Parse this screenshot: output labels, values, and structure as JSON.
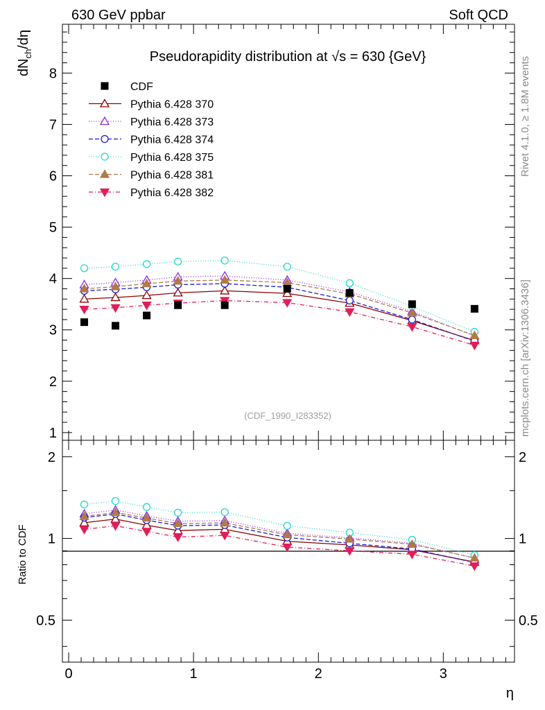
{
  "header": {
    "left": "630 GeV ppbar",
    "right": "Soft QCD"
  },
  "side_labels": {
    "rivet": "Rivet 4.1.0, ≥ 1.8M events",
    "mcplots": "mcplots.cern.ch [arXiv:1306.3436]"
  },
  "chart_data": {
    "type": "scatter",
    "title": "Pseudorapidity distribution at √s = 630 {GeV}",
    "watermark": "(CDF_1990_I283352)",
    "xlabel": "η",
    "ylabel": "dN_ch/dη",
    "ratio_ylabel": "Ratio to CDF",
    "xlim": [
      -0.05,
      3.57
    ],
    "ylim": [
      0.85,
      8.95
    ],
    "ratio_ylim": [
      0.35,
      2.3
    ],
    "x_ticks": [
      "0",
      "1",
      "2",
      "3"
    ],
    "y_ticks": [
      "1",
      "2",
      "3",
      "4",
      "5",
      "6",
      "7",
      "8"
    ],
    "ratio_ticks": [
      "0.5",
      "1",
      "2"
    ],
    "x": [
      0.125,
      0.375,
      0.625,
      0.875,
      1.25,
      1.75,
      2.25,
      2.75,
      3.25
    ],
    "data": {
      "name": "CDF",
      "marker": "square",
      "values": [
        3.15,
        3.08,
        3.28,
        3.48,
        3.48,
        3.8,
        3.72,
        3.5,
        3.41
      ]
    },
    "series": [
      {
        "name": "Pythia 6.428 370",
        "color": "#8b0000",
        "marker": "tri-open",
        "dash": "",
        "values": [
          3.6,
          3.63,
          3.67,
          3.72,
          3.76,
          3.71,
          3.52,
          3.18,
          2.79
        ]
      },
      {
        "name": "Pythia 6.428 373",
        "color": "#8a2be2",
        "marker": "tri-open",
        "dash": "1 2.5",
        "values": [
          3.88,
          3.92,
          3.97,
          4.03,
          4.05,
          3.97,
          3.74,
          3.36,
          2.88
        ]
      },
      {
        "name": "Pythia 6.428 374",
        "color": "#1a1acd",
        "marker": "circle-open",
        "dash": "6 3",
        "values": [
          3.76,
          3.79,
          3.83,
          3.88,
          3.9,
          3.83,
          3.57,
          3.2,
          2.78
        ]
      },
      {
        "name": "Pythia 6.428 375",
        "color": "#20d8cc",
        "marker": "circle-open",
        "dash": "1 2.5",
        "values": [
          4.2,
          4.23,
          4.28,
          4.33,
          4.35,
          4.23,
          3.91,
          3.46,
          2.96
        ]
      },
      {
        "name": "Pythia 6.428 381",
        "color": "#b07a4a",
        "marker": "tri-filled",
        "dash": "6 3",
        "values": [
          3.8,
          3.84,
          3.9,
          3.95,
          3.97,
          3.92,
          3.7,
          3.33,
          2.89
        ]
      },
      {
        "name": "Pythia 6.428 382",
        "color": "#e01e5a",
        "marker": "tri-down-filled",
        "dash": "6 3 1 3",
        "values": [
          3.4,
          3.43,
          3.48,
          3.52,
          3.57,
          3.53,
          3.35,
          3.06,
          2.7
        ]
      }
    ]
  }
}
